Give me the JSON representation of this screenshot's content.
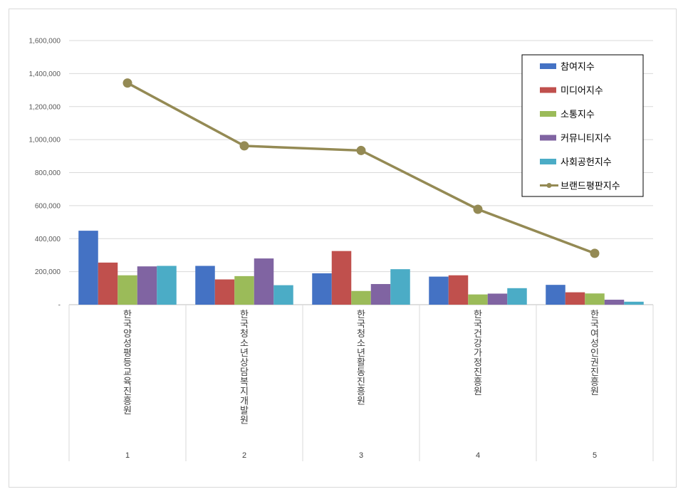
{
  "chart_data": {
    "type": "bar",
    "categories": [
      "1",
      "2",
      "3",
      "4",
      "5"
    ],
    "category_names": [
      "한국양성평등교육진흥원",
      "한국청소년상담복지개발원",
      "한국청소년활동진흥원",
      "한국건강가정진흥원",
      "한국여성인권진흥원"
    ],
    "series": [
      {
        "name": "참여지수",
        "type": "bar",
        "color": "#4472c4",
        "values": [
          448000,
          235000,
          190000,
          170000,
          120000
        ]
      },
      {
        "name": "미디어지수",
        "type": "bar",
        "color": "#c0504d",
        "values": [
          255000,
          153000,
          325000,
          178000,
          75000
        ]
      },
      {
        "name": "소통지수",
        "type": "bar",
        "color": "#9bbb59",
        "values": [
          178000,
          173000,
          83000,
          62000,
          68000
        ]
      },
      {
        "name": "커뮤니티지수",
        "type": "bar",
        "color": "#8064a2",
        "values": [
          232000,
          280000,
          125000,
          67000,
          30000
        ]
      },
      {
        "name": "사회공헌지수",
        "type": "bar",
        "color": "#4bacc6",
        "values": [
          235000,
          118000,
          215000,
          100000,
          18000
        ]
      },
      {
        "name": "브랜드평판지수",
        "type": "line",
        "color": "#948a54",
        "values": [
          1343000,
          962000,
          934000,
          578000,
          311000
        ]
      }
    ],
    "yticks": [
      "-",
      "200,000",
      "400,000",
      "600,000",
      "800,000",
      "1,000,000",
      "1,200,000",
      "1,400,000",
      "1,600,000"
    ],
    "ylim": [
      0,
      1600000
    ],
    "grid": true,
    "legend_position": "top-right"
  }
}
